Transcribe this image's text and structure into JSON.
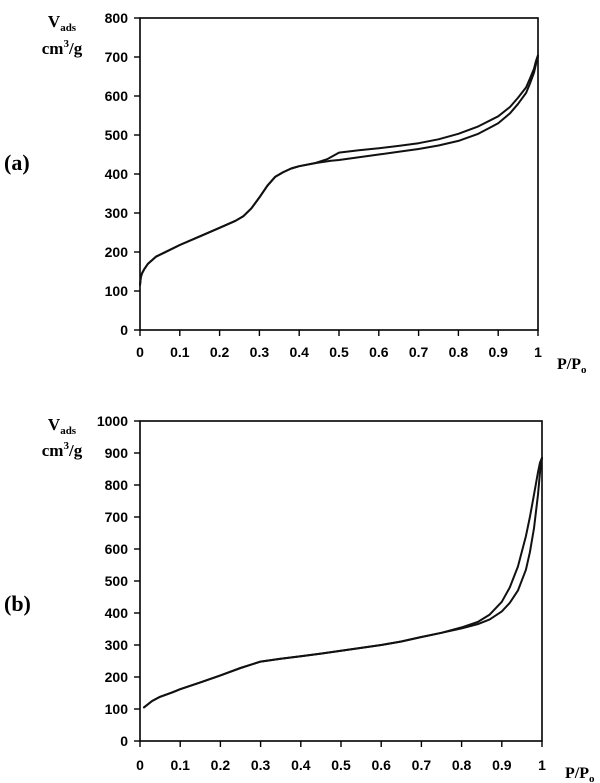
{
  "chart_data": [
    {
      "type": "line",
      "panel_label": "(a)",
      "ylabel_main": "V",
      "ylabel_sub": "ads",
      "ylabel_unit": "cm",
      "ylabel_unit_sup": "3",
      "ylabel_unit_tail": "/g",
      "xlabel_main": "P/P",
      "xlabel_sub": "o",
      "xlim": [
        0,
        1
      ],
      "ylim": [
        0,
        800
      ],
      "xticks": [
        "0",
        "0.1",
        "0.2",
        "0.3",
        "0.4",
        "0.5",
        "0.6",
        "0.7",
        "0.8",
        "0.9",
        "1"
      ],
      "yticks": [
        "0",
        "100",
        "200",
        "300",
        "400",
        "500",
        "600",
        "700",
        "800"
      ],
      "grid": false,
      "series": [
        {
          "x": [
            0,
            0.002,
            0.005,
            0.01,
            0.02,
            0.04,
            0.06,
            0.1,
            0.15,
            0.2,
            0.24,
            0.26,
            0.28,
            0.3,
            0.32,
            0.34,
            0.36,
            0.38,
            0.4,
            0.44,
            0.48,
            0.5,
            0.55,
            0.6,
            0.65,
            0.7,
            0.75,
            0.8,
            0.85,
            0.9,
            0.93,
            0.95,
            0.97,
            0.98,
            0.99,
            0.995,
            1.0
          ],
          "y": [
            115,
            135,
            145,
            155,
            170,
            188,
            198,
            218,
            240,
            262,
            280,
            292,
            312,
            340,
            370,
            393,
            405,
            414,
            420,
            428,
            434,
            436,
            443,
            450,
            457,
            464,
            473,
            485,
            503,
            530,
            556,
            580,
            608,
            632,
            660,
            682,
            700
          ]
        },
        {
          "x": [
            0,
            0.002,
            0.005,
            0.01,
            0.02,
            0.04,
            0.06,
            0.1,
            0.15,
            0.2,
            0.24,
            0.26,
            0.28,
            0.3,
            0.32,
            0.34,
            0.36,
            0.38,
            0.4,
            0.44,
            0.47,
            0.5,
            0.55,
            0.6,
            0.65,
            0.7,
            0.75,
            0.8,
            0.85,
            0.9,
            0.93,
            0.95,
            0.97,
            0.98,
            0.99,
            0.995,
            1.0
          ],
          "y": [
            115,
            135,
            145,
            155,
            170,
            188,
            198,
            218,
            240,
            262,
            280,
            292,
            312,
            340,
            370,
            393,
            405,
            414,
            420,
            428,
            438,
            455,
            461,
            466,
            472,
            479,
            489,
            503,
            522,
            548,
            572,
            596,
            622,
            645,
            670,
            690,
            705
          ]
        }
      ]
    },
    {
      "type": "line",
      "panel_label": "(b)",
      "ylabel_main": "V",
      "ylabel_sub": "ads",
      "ylabel_unit": "cm",
      "ylabel_unit_sup": "3",
      "ylabel_unit_tail": "/g",
      "xlabel_main": "P/P",
      "xlabel_sub": "o",
      "xlim": [
        0,
        1
      ],
      "ylim": [
        0,
        1000
      ],
      "xticks": [
        "0",
        "0.1",
        "0.2",
        "0.3",
        "0.4",
        "0.5",
        "0.6",
        "0.7",
        "0.8",
        "0.9",
        "1"
      ],
      "yticks": [
        "0",
        "100",
        "200",
        "300",
        "400",
        "500",
        "600",
        "700",
        "800",
        "900",
        "1000"
      ],
      "grid": false,
      "series": [
        {
          "x": [
            0.01,
            0.03,
            0.05,
            0.08,
            0.1,
            0.15,
            0.2,
            0.25,
            0.3,
            0.35,
            0.4,
            0.45,
            0.5,
            0.55,
            0.6,
            0.65,
            0.7,
            0.75,
            0.8,
            0.84,
            0.87,
            0.9,
            0.92,
            0.94,
            0.96,
            0.97,
            0.98,
            0.99,
            0.995,
            1.0
          ],
          "y": [
            105,
            125,
            138,
            152,
            162,
            183,
            205,
            228,
            248,
            257,
            265,
            273,
            282,
            291,
            300,
            311,
            325,
            338,
            352,
            365,
            380,
            405,
            432,
            470,
            535,
            590,
            665,
            770,
            840,
            885
          ]
        },
        {
          "x": [
            0.01,
            0.03,
            0.05,
            0.08,
            0.1,
            0.15,
            0.2,
            0.25,
            0.3,
            0.35,
            0.4,
            0.45,
            0.5,
            0.55,
            0.6,
            0.65,
            0.7,
            0.75,
            0.8,
            0.84,
            0.87,
            0.9,
            0.92,
            0.94,
            0.96,
            0.97,
            0.98,
            0.99,
            0.995,
            1.0
          ],
          "y": [
            105,
            125,
            138,
            152,
            162,
            183,
            205,
            228,
            248,
            257,
            265,
            273,
            282,
            291,
            300,
            311,
            325,
            338,
            355,
            372,
            395,
            435,
            480,
            545,
            640,
            700,
            770,
            840,
            870,
            885
          ]
        }
      ]
    }
  ]
}
